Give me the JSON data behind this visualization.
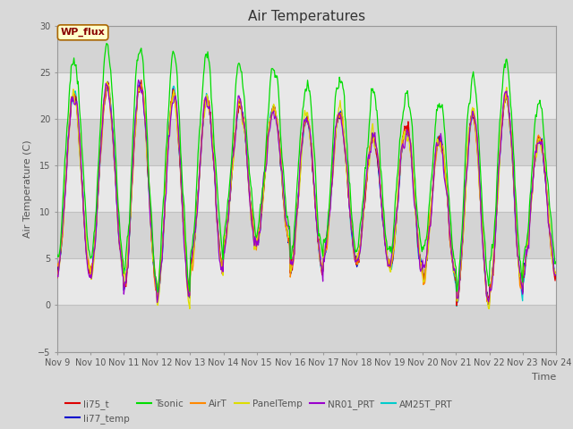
{
  "title": "Air Temperatures",
  "xlabel": "Time",
  "ylabel": "Air Temperature (C)",
  "ylim": [
    -5,
    30
  ],
  "xlim_days": [
    9,
    24
  ],
  "x_tick_labels": [
    "Nov 9",
    "Nov 10",
    "Nov 11",
    "Nov 12",
    "Nov 13",
    "Nov 14",
    "Nov 15",
    "Nov 16",
    "Nov 17",
    "Nov 18",
    "Nov 19",
    "Nov 20",
    "Nov 21",
    "Nov 22",
    "Nov 23",
    "Nov 24"
  ],
  "series_colors": {
    "li75_t": "#dd0000",
    "li77_temp": "#0000cc",
    "Tsonic": "#00dd00",
    "AirT": "#ff8800",
    "PanelTemp": "#dddd00",
    "NR01_PRT": "#9900cc",
    "AM25T_PRT": "#00cccc"
  },
  "annotation_text": "WP_flux",
  "annotation_box_color": "#ffffcc",
  "annotation_text_color": "#880000",
  "annotation_border_color": "#aa6600",
  "background_color": "#d9d9d9",
  "plot_bg_color": "#ffffff",
  "band_color_dark": "#d4d4d4",
  "band_color_light": "#e8e8e8",
  "grid_line_color": "#c0c0c0",
  "title_fontsize": 11,
  "axis_label_fontsize": 8,
  "tick_fontsize": 7
}
